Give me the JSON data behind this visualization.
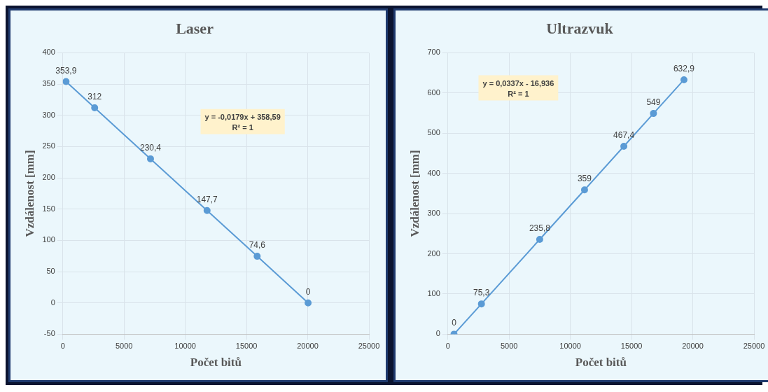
{
  "chart_data": [
    {
      "type": "line",
      "title": "Laser",
      "xlabel": "Počet bitů",
      "ylabel": "Vzdálenost [mm]",
      "xlim": [
        0,
        25000
      ],
      "xticks": [
        0,
        5000,
        10000,
        15000,
        20000,
        25000
      ],
      "ylim": [
        -50,
        400
      ],
      "yticks": [
        -50,
        0,
        50,
        100,
        150,
        200,
        250,
        300,
        350,
        400
      ],
      "grid": true,
      "legend": false,
      "marker": "circle",
      "line_style": "solid",
      "series": [
        {
          "color": "#5b9bd5",
          "x": [
            260,
            2600,
            7160,
            11780,
            15870,
            20030
          ],
          "values": [
            353.9,
            312,
            230.4,
            147.7,
            74.6,
            0
          ],
          "value_labels": [
            "353,9",
            "312",
            "230,4",
            "147,7",
            "74,6",
            "0"
          ]
        }
      ],
      "annotations": [
        "y = -0,0179x + 358,59",
        "R² = 1"
      ]
    },
    {
      "type": "line",
      "title": "Ultrazvuk",
      "xlabel": "Počet bitů",
      "ylabel": "Vzdálenost [mm]",
      "xlim": [
        0,
        25000
      ],
      "xticks": [
        0,
        5000,
        10000,
        15000,
        20000,
        25000
      ],
      "ylim": [
        0,
        700
      ],
      "yticks": [
        0,
        100,
        200,
        300,
        400,
        500,
        600,
        700
      ],
      "grid": true,
      "legend": false,
      "marker": "circle",
      "line_style": "solid",
      "series": [
        {
          "color": "#5b9bd5",
          "x": [
            500,
            2740,
            7500,
            11160,
            14370,
            16790,
            19280
          ],
          "values": [
            0,
            75.3,
            235.8,
            359,
            467.4,
            549,
            632.9
          ],
          "value_labels": [
            "0",
            "75,3",
            "235,8",
            "359",
            "467,4",
            "549",
            "632,9"
          ]
        }
      ],
      "annotations": [
        "y = 0,0337x - 16,936",
        "R² = 1"
      ]
    }
  ]
}
